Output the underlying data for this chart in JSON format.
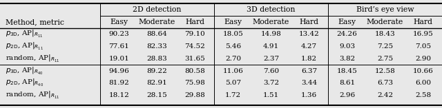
{
  "header_row1_labels": [
    "2D detection",
    "3D detection",
    "Bird’s eye view"
  ],
  "header_row2": [
    "Method, metric",
    "Easy",
    "Moderate",
    "Hard",
    "Easy",
    "Moderate",
    "Hard",
    "Easy",
    "Moderate",
    "Hard"
  ],
  "group1": [
    [
      "$p_{\\mathrm{3D}}$, AP$|_{R_{11}}$",
      "90.23",
      "88.64",
      "79.10",
      "18.05",
      "14.98",
      "13.42",
      "24.26",
      "18.43",
      "16.95"
    ],
    [
      "$p_{\\mathrm{2D}}$, AP$|_{R_{11}}$",
      "77.61",
      "82.33",
      "74.52",
      "5.46",
      "4.91",
      "4.27",
      "9.03",
      "7.25",
      "7.05"
    ],
    [
      "random, AP$|_{R_{11}}$",
      "19.01",
      "28.83",
      "31.65",
      "2.70",
      "2.37",
      "1.82",
      "3.82",
      "2.75",
      "2.90"
    ]
  ],
  "group2": [
    [
      "$p_{\\mathrm{3D}}$, AP$|_{R_{40}}$",
      "94.96",
      "89.22",
      "80.58",
      "11.06",
      "7.60",
      "6.37",
      "18.45",
      "12.58",
      "10.66"
    ],
    [
      "$p_{\\mathrm{2D}}$, AP$|_{R_{40}}$",
      "81.92",
      "82.91",
      "75.98",
      "5.07",
      "3.72",
      "3.44",
      "8.61",
      "6.73",
      "6.00"
    ],
    [
      "random, AP$|_{R_{11}}$",
      "18.12",
      "28.15",
      "29.88",
      "1.72",
      "1.51",
      "1.36",
      "2.96",
      "2.42",
      "2.58"
    ]
  ],
  "bg_color": "#e8e8e8",
  "font_size": 7.5,
  "header_font_size": 7.8
}
